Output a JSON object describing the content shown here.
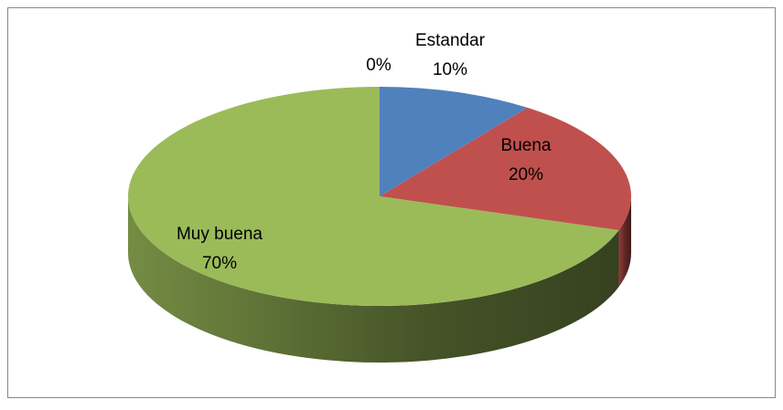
{
  "chart_data": {
    "type": "pie",
    "categories": [
      "Estandar",
      "Buena",
      "Muy buena",
      null
    ],
    "values": [
      10,
      20,
      70,
      0
    ],
    "value_labels": [
      "10%",
      "20%",
      "70%",
      "0%"
    ],
    "colors": [
      "#4f81bd",
      "#c0504d",
      "#9bbb59",
      "#8064a2"
    ]
  }
}
